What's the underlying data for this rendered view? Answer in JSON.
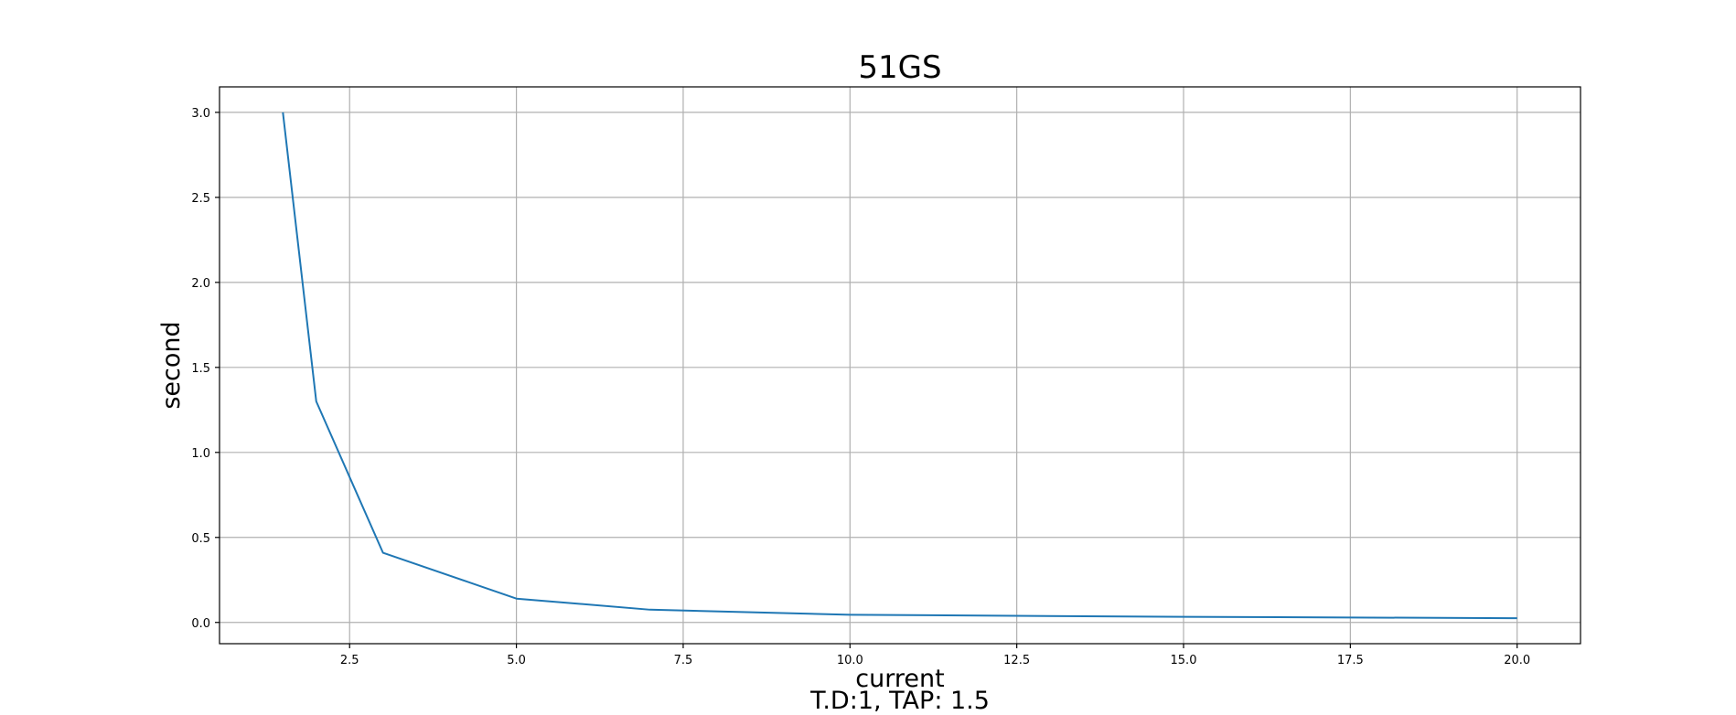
{
  "chart_data": {
    "type": "line",
    "title": "51GS",
    "xlabel": "current",
    "ylabel": "second",
    "subtitle": "T.D:1, TAP: 1.5",
    "xlim": [
      0.55,
      20.95
    ],
    "ylim": [
      -0.125,
      3.15
    ],
    "x_ticks": [
      2.5,
      5.0,
      7.5,
      10.0,
      12.5,
      15.0,
      17.5,
      20.0
    ],
    "x_tick_labels": [
      "2.5",
      "5.0",
      "7.5",
      "10.0",
      "12.5",
      "15.0",
      "17.5",
      "20.0"
    ],
    "y_ticks": [
      0.0,
      0.5,
      1.0,
      1.5,
      2.0,
      2.5,
      3.0
    ],
    "y_tick_labels": [
      "0.0",
      "0.5",
      "1.0",
      "1.5",
      "2.0",
      "2.5",
      "3.0"
    ],
    "grid": true,
    "series": [
      {
        "color": "#1f77b4",
        "x": [
          1.5,
          2.0,
          3.0,
          5.0,
          7.0,
          10.0,
          15.0,
          20.0
        ],
        "y": [
          3.0,
          1.3,
          0.41,
          0.14,
          0.075,
          0.045,
          0.033,
          0.025
        ]
      }
    ]
  }
}
